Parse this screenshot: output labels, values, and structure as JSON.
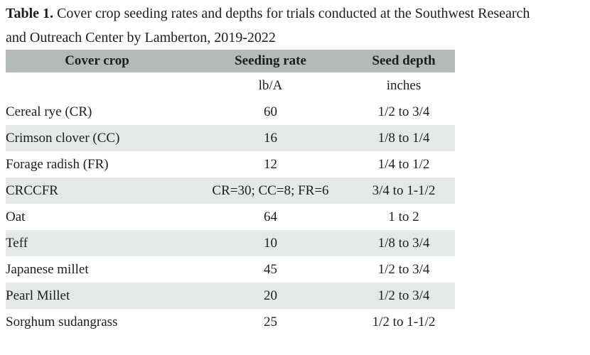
{
  "caption": {
    "label": "Table 1.",
    "line1": "Cover crop seeding rates and depths for trials conducted at the Southwest Research",
    "line2": "and Outreach Center by Lamberton, 2019-2022"
  },
  "table": {
    "columns": [
      "Cover crop",
      "Seeding rate",
      "Seed depth"
    ],
    "units": [
      "",
      "lb/A",
      "inches"
    ],
    "rows": [
      [
        "Cereal rye (CR)",
        "60",
        "1/2 to 3/4"
      ],
      [
        "Crimson clover (CC)",
        "16",
        "1/8 to 1/4"
      ],
      [
        "Forage radish (FR)",
        "12",
        "1/4 to 1/2"
      ],
      [
        "CRCCFR",
        "CR=30; CC=8; FR=6",
        "3/4 to 1-1/2"
      ],
      [
        "Oat",
        "64",
        "1 to 2"
      ],
      [
        "Teff",
        "10",
        "1/8 to 3/4"
      ],
      [
        "Japanese millet",
        "45",
        "1/2 to 3/4"
      ],
      [
        "Pearl Millet",
        "20",
        "1/2 to 3/4"
      ],
      [
        "Sorghum sudangrass",
        "25",
        "1/2 to 1-1/2"
      ]
    ],
    "colors": {
      "header_bg": "#b4b9b9",
      "stripe_bg": "#e4e8e8",
      "text": "#1d1d1d"
    }
  }
}
